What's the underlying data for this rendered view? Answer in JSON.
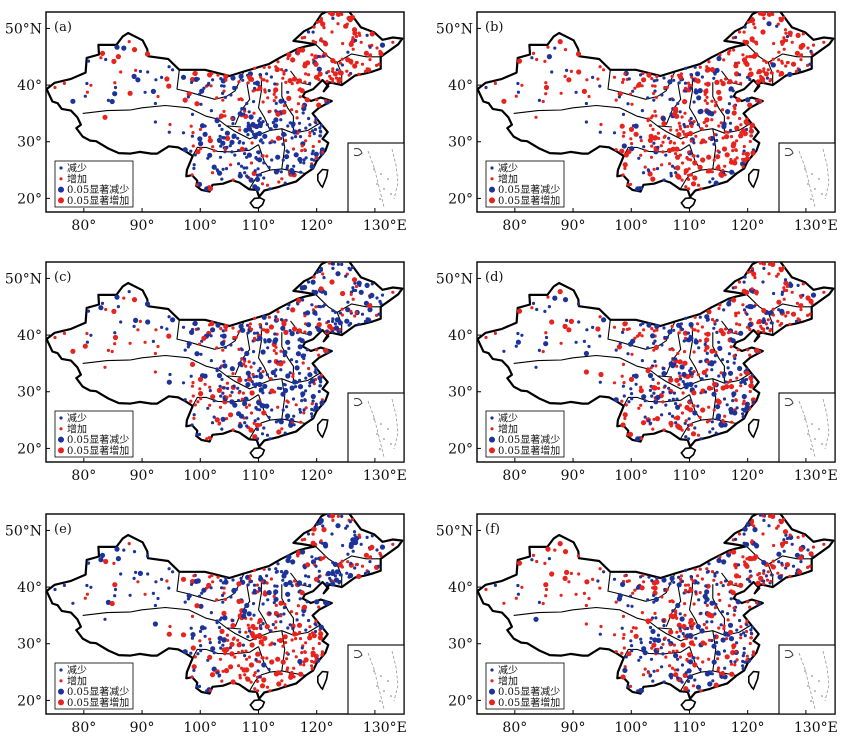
{
  "figure": {
    "panels": [
      {
        "id": "a",
        "label": "(a)",
        "pattern": "blue_south"
      },
      {
        "id": "b",
        "label": "(b)",
        "pattern": "red_south"
      },
      {
        "id": "c",
        "label": "(c)",
        "pattern": "blue_east"
      },
      {
        "id": "d",
        "label": "(d)",
        "pattern": "mixed_blue"
      },
      {
        "id": "e",
        "label": "(e)",
        "pattern": "red_south_blue_north"
      },
      {
        "id": "f",
        "label": "(f)",
        "pattern": "mixed_red"
      }
    ],
    "x_ticks": [
      "80°",
      "90°",
      "100°",
      "110°",
      "120°",
      "130°E"
    ],
    "y_ticks": [
      "50°N",
      "40°",
      "30°",
      "20°"
    ],
    "legend": [
      {
        "label": "减少",
        "color": "#1c3399",
        "size": "small"
      },
      {
        "label": "增加",
        "color": "#e8221c",
        "size": "small"
      },
      {
        "label": "0.05显著减少",
        "color": "#1c3399",
        "size": "large"
      },
      {
        "label": "0.05显著增加",
        "color": "#e8221c",
        "size": "large"
      }
    ],
    "colors": {
      "decrease": "#1c3399",
      "increase": "#e8221c"
    }
  }
}
